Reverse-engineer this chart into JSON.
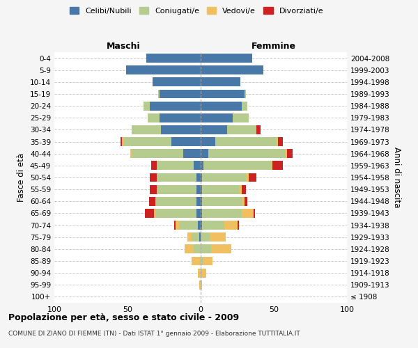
{
  "age_groups": [
    "100+",
    "95-99",
    "90-94",
    "85-89",
    "80-84",
    "75-79",
    "70-74",
    "65-69",
    "60-64",
    "55-59",
    "50-54",
    "45-49",
    "40-44",
    "35-39",
    "30-34",
    "25-29",
    "20-24",
    "15-19",
    "10-14",
    "5-9",
    "0-4"
  ],
  "birth_years": [
    "≤ 1908",
    "1909-1913",
    "1914-1918",
    "1919-1923",
    "1924-1928",
    "1929-1933",
    "1934-1938",
    "1939-1943",
    "1944-1948",
    "1949-1953",
    "1954-1958",
    "1959-1963",
    "1964-1968",
    "1969-1973",
    "1974-1978",
    "1979-1983",
    "1984-1988",
    "1989-1993",
    "1994-1998",
    "1999-2003",
    "2004-2008"
  ],
  "maschi": {
    "celibi": [
      0,
      0,
      0,
      0,
      0,
      1,
      2,
      3,
      3,
      3,
      3,
      5,
      12,
      20,
      27,
      28,
      35,
      28,
      33,
      51,
      37
    ],
    "coniugati": [
      0,
      0,
      0,
      0,
      5,
      5,
      13,
      28,
      28,
      27,
      27,
      25,
      35,
      33,
      20,
      8,
      4,
      1,
      0,
      0,
      0
    ],
    "vedovi": [
      0,
      1,
      2,
      6,
      6,
      3,
      2,
      1,
      0,
      0,
      0,
      0,
      1,
      1,
      0,
      0,
      0,
      0,
      0,
      0,
      0
    ],
    "divorziati": [
      0,
      0,
      0,
      0,
      0,
      0,
      1,
      6,
      4,
      5,
      5,
      4,
      0,
      1,
      0,
      0,
      0,
      0,
      0,
      0,
      0
    ]
  },
  "femmine": {
    "nubili": [
      0,
      0,
      0,
      0,
      0,
      0,
      1,
      1,
      1,
      1,
      1,
      2,
      5,
      10,
      18,
      22,
      28,
      30,
      27,
      43,
      35
    ],
    "coniugate": [
      0,
      0,
      1,
      2,
      7,
      6,
      15,
      27,
      27,
      25,
      30,
      46,
      53,
      42,
      20,
      11,
      4,
      1,
      0,
      0,
      0
    ],
    "vedove": [
      0,
      1,
      3,
      6,
      14,
      11,
      9,
      8,
      2,
      2,
      2,
      1,
      1,
      1,
      0,
      0,
      0,
      0,
      0,
      0,
      0
    ],
    "divorziate": [
      0,
      0,
      0,
      0,
      0,
      0,
      1,
      1,
      2,
      3,
      5,
      7,
      4,
      3,
      3,
      0,
      0,
      0,
      0,
      0,
      0
    ]
  },
  "colors": {
    "celibi": "#4878a8",
    "coniugati": "#b5cc8e",
    "vedovi": "#f0c060",
    "divorziati": "#cc2222"
  },
  "xlim": 100,
  "title": "Popolazione per età, sesso e stato civile - 2009",
  "subtitle": "COMUNE DI ZIANO DI FIEMME (TN) - Dati ISTAT 1° gennaio 2009 - Elaborazione TUTTITALIA.IT",
  "ylabel_left": "Fasce di età",
  "ylabel_right": "Anni di nascita",
  "xlabel_left": "Maschi",
  "xlabel_right": "Femmine",
  "bg_color": "#f5f5f5",
  "plot_bg": "#ffffff",
  "grid_color": "#cccccc"
}
